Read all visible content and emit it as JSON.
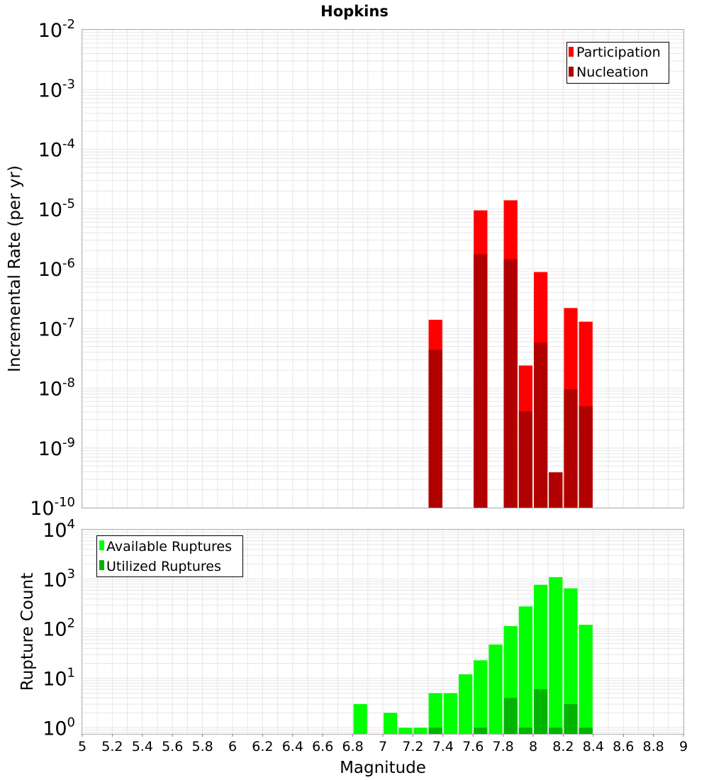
{
  "chart_data": [
    {
      "type": "bar",
      "title": "Hopkins",
      "xlabel": "",
      "ylabel": "Incremental Rate (per yr)",
      "yscale": "log",
      "ylim": [
        1e-10,
        0.01
      ],
      "xlim": [
        5,
        9
      ],
      "grid": true,
      "legend_position": "top-right",
      "bar_width": 0.1,
      "y_ticks": [
        {
          "mant": "10",
          "exp": "-10",
          "value": 1e-10
        },
        {
          "mant": "10",
          "exp": "-9",
          "value": 1e-09
        },
        {
          "mant": "10",
          "exp": "-8",
          "value": 1e-08
        },
        {
          "mant": "10",
          "exp": "-7",
          "value": 1e-07
        },
        {
          "mant": "10",
          "exp": "-6",
          "value": 1e-06
        },
        {
          "mant": "10",
          "exp": "-5",
          "value": 1e-05
        },
        {
          "mant": "10",
          "exp": "-4",
          "value": 0.0001
        },
        {
          "mant": "10",
          "exp": "-3",
          "value": 0.001
        },
        {
          "mant": "10",
          "exp": "-2",
          "value": 0.01
        }
      ],
      "series": [
        {
          "name": "Participation",
          "color": "#ff0000",
          "x": [
            7.35,
            7.65,
            7.85,
            7.95,
            8.05,
            8.15,
            8.25,
            8.35
          ],
          "values": [
            1.4e-07,
            9.5e-06,
            1.4e-05,
            2.4e-08,
            8.8e-07,
            3.9e-10,
            2.2e-07,
            1.3e-07
          ]
        },
        {
          "name": "Nucleation",
          "color": "#b00000",
          "x": [
            7.35,
            7.65,
            7.85,
            7.95,
            8.05,
            8.15,
            8.25,
            8.35
          ],
          "values": [
            4.4e-08,
            1.75e-06,
            1.45e-06,
            4.1e-09,
            5.8e-08,
            3.9e-10,
            9.6e-09,
            5e-09
          ]
        }
      ]
    },
    {
      "type": "bar",
      "title": "",
      "xlabel": "Magnitude",
      "ylabel": "Rupture Count",
      "yscale": "log",
      "ylim": [
        0.75,
        10000.0
      ],
      "xlim": [
        5,
        9
      ],
      "grid": true,
      "legend_position": "top-left",
      "bar_width": 0.1,
      "x_ticks": [
        "5",
        "5.2",
        "5.4",
        "5.6",
        "5.8",
        "6",
        "6.2",
        "6.4",
        "6.6",
        "6.8",
        "7",
        "7.2",
        "7.4",
        "7.6",
        "7.8",
        "8",
        "8.2",
        "8.4",
        "8.6",
        "8.8",
        "9"
      ],
      "y_ticks": [
        {
          "mant": "10",
          "exp": "0",
          "value": 1
        },
        {
          "mant": "10",
          "exp": "1",
          "value": 10
        },
        {
          "mant": "10",
          "exp": "2",
          "value": 100
        },
        {
          "mant": "10",
          "exp": "3",
          "value": 1000
        },
        {
          "mant": "10",
          "exp": "4",
          "value": 10000
        }
      ],
      "series": [
        {
          "name": "Available Ruptures",
          "color": "#00ff00",
          "x": [
            6.85,
            7.05,
            7.15,
            7.25,
            7.35,
            7.45,
            7.55,
            7.65,
            7.75,
            7.85,
            7.95,
            8.05,
            8.15,
            8.25,
            8.35
          ],
          "values": [
            3,
            2,
            1,
            1,
            5,
            5,
            12,
            23,
            48,
            113,
            282,
            770,
            1100,
            655,
            120
          ]
        },
        {
          "name": "Utilized Ruptures",
          "color": "#00b400",
          "x": [
            7.35,
            7.65,
            7.85,
            7.95,
            8.05,
            8.15,
            8.25,
            8.35
          ],
          "values": [
            1,
            1,
            4,
            1,
            6,
            1,
            3,
            1
          ]
        }
      ]
    }
  ]
}
